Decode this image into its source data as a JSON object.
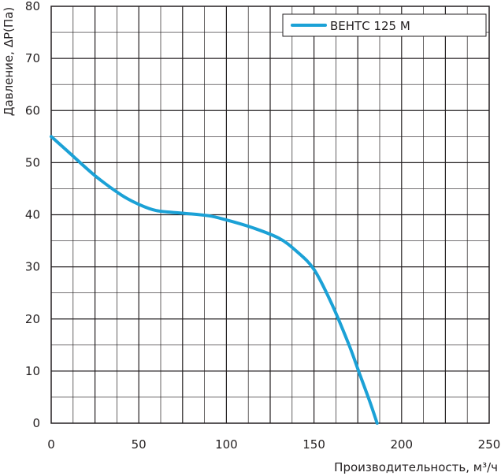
{
  "chart_data": {
    "type": "line",
    "xlabel": "Производительность, м³/ч",
    "ylabel": "Давление, ΔР(Па)",
    "xlim": [
      0,
      250
    ],
    "ylim": [
      0,
      80
    ],
    "x_ticks": [
      "0",
      "50",
      "100",
      "150",
      "200",
      "250"
    ],
    "y_ticks": [
      "0",
      "10",
      "20",
      "30",
      "40",
      "50",
      "60",
      "70",
      "80"
    ],
    "x_tick_values": [
      0,
      50,
      100,
      150,
      200,
      250
    ],
    "y_tick_values": [
      0,
      10,
      20,
      30,
      40,
      50,
      60,
      70,
      80
    ],
    "grid": true,
    "legend_position": "top-right",
    "series": [
      {
        "name": "ВЕНТС 125 М",
        "color": "#1ba1d6",
        "points": [
          [
            0,
            55
          ],
          [
            10,
            52
          ],
          [
            25,
            47.5
          ],
          [
            40,
            43.8
          ],
          [
            50,
            42
          ],
          [
            60,
            40.8
          ],
          [
            75,
            40.3
          ],
          [
            90,
            39.8
          ],
          [
            100,
            39
          ],
          [
            115,
            37.5
          ],
          [
            130,
            35.5
          ],
          [
            140,
            33
          ],
          [
            150,
            29.5
          ],
          [
            160,
            23
          ],
          [
            170,
            15
          ],
          [
            176,
            9.5
          ],
          [
            182,
            4
          ],
          [
            186,
            0
          ]
        ]
      }
    ]
  }
}
